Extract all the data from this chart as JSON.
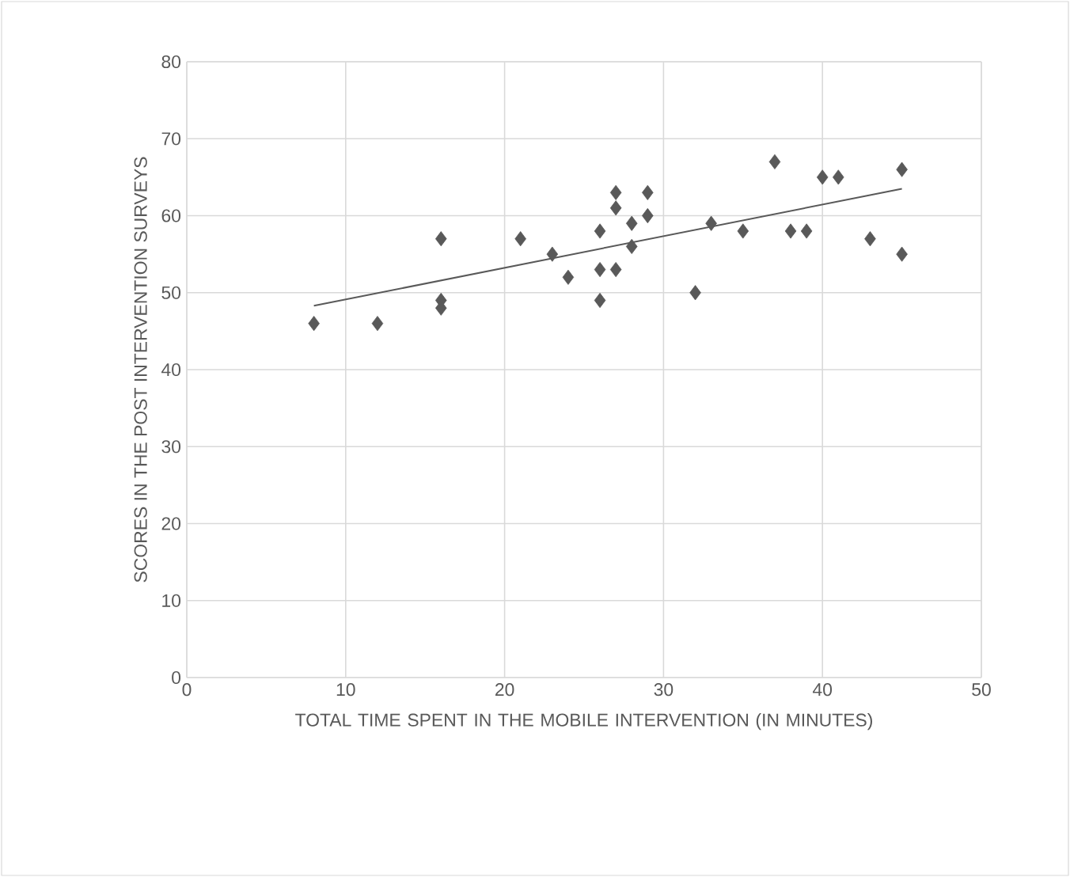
{
  "chart_data": {
    "type": "scatter",
    "xlabel": "TOTAL TIME SPENT IN THE MOBILE INTERVENTION (IN MINUTES)",
    "ylabel": "SCORES IN THE POST INTERVENTION SURVEYS",
    "xlim": [
      0,
      50
    ],
    "ylim": [
      0,
      80
    ],
    "xticks": [
      0,
      10,
      20,
      30,
      40,
      50
    ],
    "yticks": [
      0,
      10,
      20,
      30,
      40,
      50,
      60,
      70,
      80
    ],
    "grid": true,
    "marker": "diamond",
    "series": [
      {
        "color": "#595959",
        "x": [
          8,
          12,
          16,
          16,
          16,
          21,
          23,
          24,
          26,
          26,
          26,
          27,
          27,
          27,
          28,
          28,
          29,
          29,
          32,
          33,
          35,
          37,
          38,
          39,
          40,
          41,
          43,
          45,
          45
        ],
        "values": [
          46,
          46,
          57,
          49,
          48,
          57,
          55,
          52,
          58,
          53,
          49,
          63,
          61,
          53,
          59,
          56,
          63,
          60,
          50,
          59,
          58,
          67,
          58,
          58,
          65,
          65,
          57,
          66,
          55
        ]
      },
      {
        "type": "line",
        "marker": "none",
        "color": "#595959",
        "x": [
          8,
          45
        ],
        "values": [
          48.3,
          63.5
        ]
      }
    ]
  }
}
